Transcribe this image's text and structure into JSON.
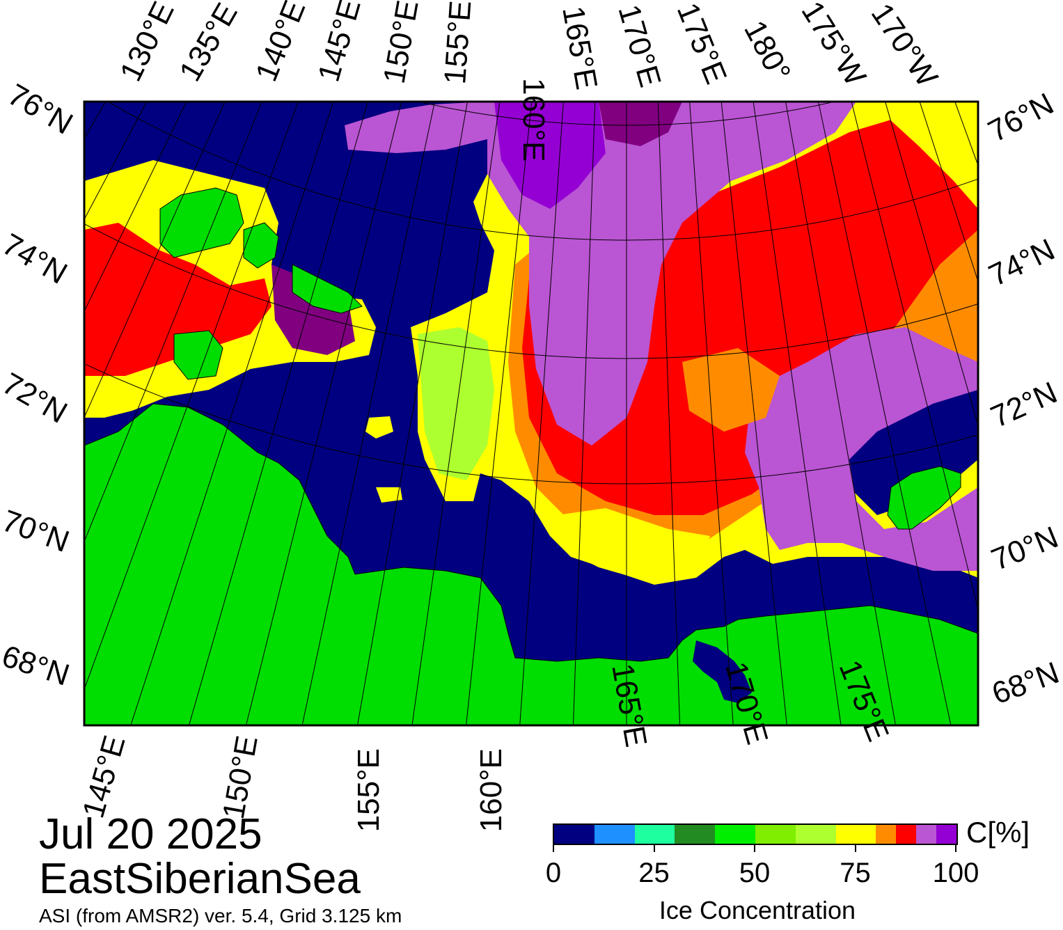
{
  "title": {
    "date": "Jul 20 2025",
    "region": "EastSiberianSea",
    "source": "ASI (from AMSR2) ver. 5.4,  Grid 3.125 km"
  },
  "colors": {
    "ocean": "#000080",
    "land": "#00DD00",
    "land_grey": "#808080",
    "ice_scale": [
      "#000080",
      "#1E90FF",
      "#1EFFA0",
      "#228B22",
      "#00EE00",
      "#7FEE00",
      "#ADFF2F",
      "#FFFF00",
      "#FF8C00",
      "#FF0000",
      "#BA55D3",
      "#9400D3",
      "#800080"
    ]
  },
  "axes": {
    "top_lon_labels": [
      "130°E",
      "135°E",
      "140°E",
      "145°E",
      "150°E",
      "155°E",
      "160°E",
      "165°E",
      "170°E",
      "175°E",
      "180°",
      "175°W",
      "170°W"
    ],
    "bottom_lon_labels": [
      "145°E",
      "150°E",
      "155°E",
      "160°E",
      "165°E",
      "170°E",
      "175°E"
    ],
    "left_lat_labels": [
      "76°N",
      "74°N",
      "72°N",
      "70°N",
      "68°N"
    ],
    "right_lat_labels": [
      "76°N",
      "74°N",
      "72°N",
      "70°N",
      "68°N"
    ]
  },
  "legend": {
    "unit": "C[%]",
    "title": "Ice Concentration",
    "tick_labels": [
      "0",
      "25",
      "50",
      "75",
      "100"
    ],
    "min": 0,
    "max": 100,
    "bin_edges": [
      0,
      10,
      20,
      30,
      40,
      50,
      60,
      70,
      80,
      85,
      90,
      95,
      100
    ]
  }
}
